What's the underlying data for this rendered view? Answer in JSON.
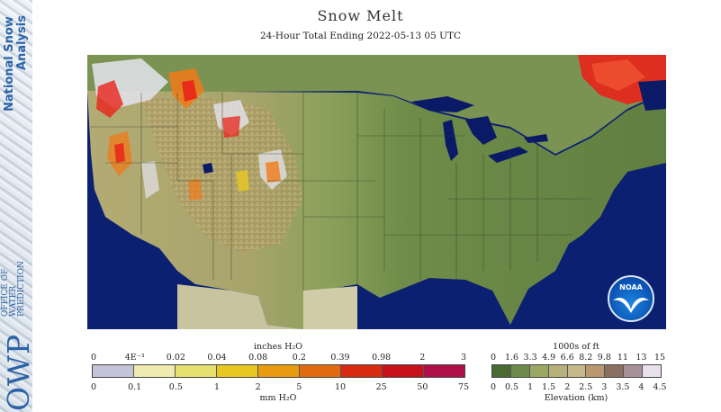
{
  "header": {
    "title": "Snow Melt",
    "subtitle": "24-Hour Total Ending 2022-05-13 05 UTC"
  },
  "sidebar": {
    "nsa_line1": "National Snow",
    "nsa_line2": "Analysis",
    "owp": "OWP",
    "office_line1": "OFFICE OF",
    "office_line2": "WATER",
    "office_line3": "PREDICTION"
  },
  "map": {
    "region": "Contiguous United States",
    "logo_text": "NOAA",
    "colors": {
      "ocean": "#0b1a66",
      "mexico": "#c8c4a0",
      "lowland": "#6d8a4a",
      "plains": "#9aa864",
      "upland": "#b8b07a",
      "melt_high": "#e8241a",
      "melt_mid": "#f07a18",
      "snow": "#e4e4ee"
    }
  },
  "legend_melt": {
    "unit_top": "inches H₂O",
    "unit_bottom": "mm H₂O",
    "top_ticks": [
      "0",
      "4E⁻³",
      "0.02",
      "0.04",
      "0.08",
      "0.2",
      "0.39",
      "0.98",
      "2",
      "3"
    ],
    "bottom_ticks": [
      "0",
      "0.1",
      "0.5",
      "1",
      "2",
      "5",
      "10",
      "25",
      "50",
      "75"
    ],
    "colors": [
      "#c4c4d8",
      "#eeeab0",
      "#e6e070",
      "#e8c820",
      "#e89a10",
      "#e06a10",
      "#d82a10",
      "#c8101a",
      "#b0104a"
    ]
  },
  "legend_elev": {
    "unit_top": "1000s of ft",
    "unit_bottom": "Elevation (km)",
    "top_ticks": [
      "0",
      "1.6",
      "3.3",
      "4.9",
      "6.6",
      "8.2",
      "9.8",
      "11",
      "13",
      "15"
    ],
    "bottom_ticks": [
      "0",
      "0.5",
      "1",
      "1.5",
      "2",
      "2.5",
      "3",
      "3.5",
      "4",
      "4.5"
    ],
    "colors": [
      "#4a6a34",
      "#6d8a4a",
      "#9aa864",
      "#b8b07a",
      "#c8b88a",
      "#b89870",
      "#8a7060",
      "#a89098",
      "#e8e0ea"
    ]
  }
}
